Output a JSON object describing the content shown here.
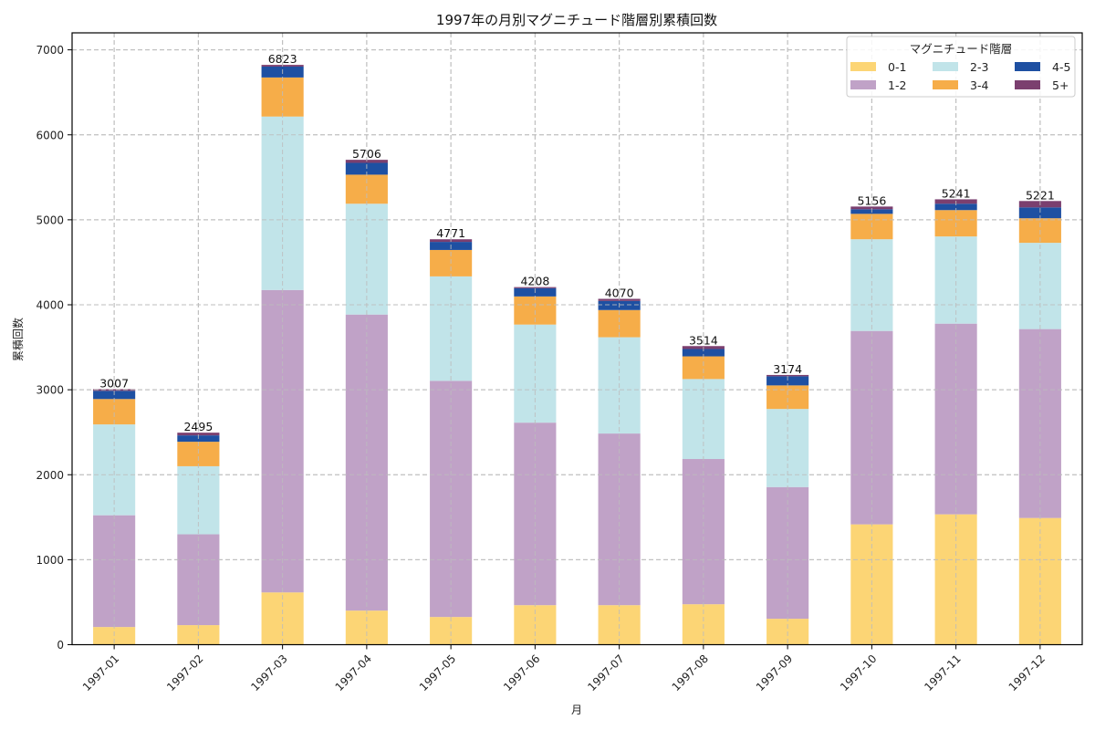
{
  "chart_data": {
    "type": "bar",
    "stacked": true,
    "title": "1997年の月別マグニチュード階層別累積回数",
    "xlabel": "月",
    "ylabel": "累積回数",
    "ylim": [
      0,
      7200
    ],
    "yticks": [
      0,
      1000,
      2000,
      3000,
      4000,
      5000,
      6000,
      7000
    ],
    "grid": true,
    "categories": [
      "1997-01",
      "1997-02",
      "1997-03",
      "1997-04",
      "1997-05",
      "1997-06",
      "1997-07",
      "1997-08",
      "1997-09",
      "1997-10",
      "1997-11",
      "1997-12"
    ],
    "series": [
      {
        "name": "0-1",
        "color": "#fcd575",
        "values": [
          208,
          230,
          615,
          401,
          326,
          465,
          465,
          476,
          305,
          1416,
          1534,
          1491
        ]
      },
      {
        "name": "1-2",
        "color": "#c0a2c7",
        "values": [
          1315,
          1069,
          3559,
          3484,
          2779,
          2148,
          2020,
          1709,
          1550,
          2276,
          2244,
          2223
        ]
      },
      {
        "name": "2-3",
        "color": "#c1e4e9",
        "values": [
          1069,
          801,
          2041,
          1304,
          1229,
          1154,
          1133,
          941,
          919,
          1079,
          1026,
          1015
        ]
      },
      {
        "name": "3-4",
        "color": "#f6ad49",
        "values": [
          299,
          288,
          460,
          342,
          311,
          331,
          320,
          267,
          277,
          299,
          310,
          289
        ]
      },
      {
        "name": "4-5",
        "color": "#1e50a2",
        "values": [
          96,
          75,
          128,
          139,
          95,
          97,
          107,
          86,
          107,
          54,
          75,
          128
        ]
      },
      {
        "name": "5+",
        "color": "#7b3f6f",
        "values": [
          20,
          32,
          20,
          36,
          31,
          13,
          25,
          35,
          16,
          32,
          52,
          75
        ]
      }
    ],
    "totals": [
      3007,
      2495,
      6823,
      5706,
      4771,
      4208,
      4070,
      3514,
      3174,
      5156,
      5241,
      5221
    ],
    "legend": {
      "title": "マグニチュード階層",
      "placement": "top-right",
      "columns": 3
    }
  }
}
